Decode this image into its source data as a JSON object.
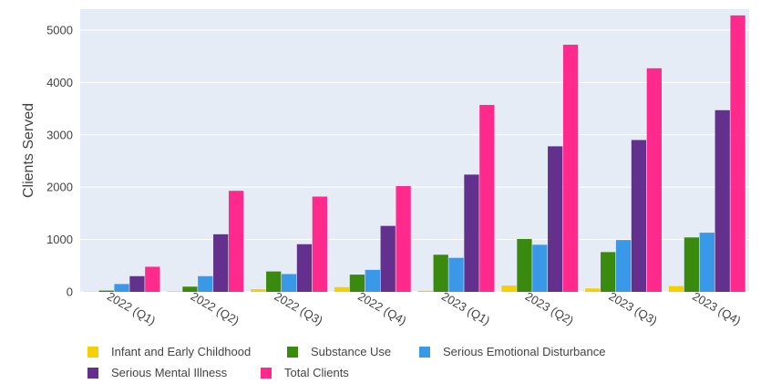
{
  "chart_data": {
    "type": "bar",
    "ylabel": "Clients Served",
    "xlabel": "",
    "ylim": [
      0,
      5400
    ],
    "yticks": [
      0,
      1000,
      2000,
      3000,
      4000,
      5000
    ],
    "grid": true,
    "background": "#e5ecf6",
    "legend_position": "bottom-left",
    "categories": [
      "2022 (Q1)",
      "2022 (Q2)",
      "2022 (Q3)",
      "2022 (Q4)",
      "2023 (Q1)",
      "2023 (Q2)",
      "2023 (Q3)",
      "2023 (Q4)"
    ],
    "series": [
      {
        "name": "Infant and Early Childhood",
        "color": "#f5d000",
        "values": [
          5,
          10,
          50,
          90,
          20,
          120,
          65,
          110
        ]
      },
      {
        "name": "Substance Use",
        "color": "#3a8a10",
        "values": [
          25,
          100,
          390,
          330,
          710,
          1010,
          760,
          1040
        ]
      },
      {
        "name": "Serious Emotional Disturbance",
        "color": "#3a98e8",
        "values": [
          150,
          300,
          340,
          420,
          650,
          900,
          990,
          1130
        ]
      },
      {
        "name": "Serious Mental Illness",
        "color": "#64308e",
        "values": [
          300,
          1100,
          910,
          1260,
          2240,
          2780,
          2900,
          3470
        ]
      },
      {
        "name": "Total Clients",
        "color": "#ff2a8c",
        "values": [
          480,
          1930,
          1820,
          2020,
          3570,
          4720,
          4270,
          5280
        ]
      }
    ]
  }
}
